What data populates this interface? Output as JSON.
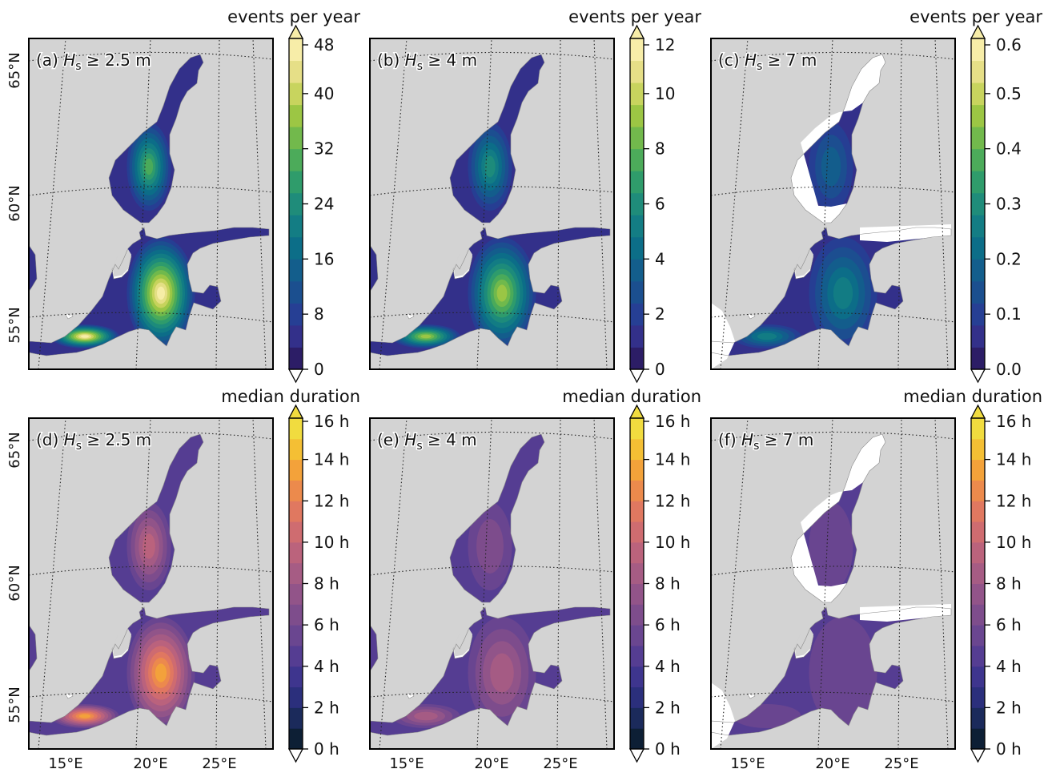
{
  "figure": {
    "lat_labels": [
      "65°N",
      "60°N",
      "55°N"
    ],
    "lon_labels": [
      "15°E",
      "20°E",
      "25°E"
    ],
    "rows": [
      {
        "colorbar_title": "events per year",
        "palette": [
          "#2c1d66",
          "#33308a",
          "#263f94",
          "#1b4f8f",
          "#135e8c",
          "#0c6e88",
          "#137d84",
          "#1f8c7a",
          "#2f9c6b",
          "#4cab5a",
          "#72b94c",
          "#9cc644",
          "#c8d45e",
          "#e6df87",
          "#f7eda8"
        ],
        "panels": [
          {
            "label_prefix": "(a) ",
            "label_sym": "H",
            "label_sub": "s",
            "label_suffix": " ≥ 2.5 m",
            "ticks": [
              "0",
              "8",
              "16",
              "24",
              "32",
              "40",
              "48"
            ],
            "severity": 1.0
          },
          {
            "label_prefix": "(b) ",
            "label_sym": "H",
            "label_sub": "s",
            "label_suffix": " ≥ 4 m",
            "ticks": [
              "0",
              "2",
              "4",
              "6",
              "8",
              "10",
              "12"
            ],
            "severity": 0.75
          },
          {
            "label_prefix": "(c) ",
            "label_sym": "H",
            "label_sub": "s",
            "label_suffix": " ≥ 7 m",
            "ticks": [
              "0.0",
              "0.1",
              "0.2",
              "0.3",
              "0.4",
              "0.5",
              "0.6"
            ],
            "severity": 0.45
          }
        ]
      },
      {
        "colorbar_title": "median duration",
        "palette": [
          "#0d1f35",
          "#1b2a5b",
          "#2b2f7c",
          "#3e358e",
          "#553d92",
          "#6a4690",
          "#7e4d8c",
          "#925489",
          "#a65c84",
          "#bb637c",
          "#cf6c70",
          "#e07860",
          "#ec8a4c",
          "#f3a23a",
          "#f4bf34",
          "#f1dc3f"
        ],
        "panels": [
          {
            "label_prefix": "(d) ",
            "label_sym": "H",
            "label_sub": "s",
            "label_suffix": " ≥ 2.5 m",
            "ticks": [
              "0 h",
              "2 h",
              "4 h",
              "6 h",
              "8 h",
              "10 h",
              "12 h",
              "14 h",
              "16 h"
            ],
            "severity": 0.85
          },
          {
            "label_prefix": "(e) ",
            "label_sym": "H",
            "label_sub": "s",
            "label_suffix": " ≥ 4 m",
            "ticks": [
              "0 h",
              "2 h",
              "4 h",
              "6 h",
              "8 h",
              "10 h",
              "12 h",
              "14 h",
              "16 h"
            ],
            "severity": 0.55
          },
          {
            "label_prefix": "(f) ",
            "label_sym": "H",
            "label_sub": "s",
            "label_suffix": " ≥ 7 m",
            "ticks": [
              "0 h",
              "2 h",
              "4 h",
              "6 h",
              "8 h",
              "10 h",
              "12 h",
              "14 h",
              "16 h"
            ],
            "severity": 0.3
          }
        ]
      }
    ],
    "colors": {
      "land": "#d3d3d3",
      "frame": "#000000",
      "coast": "#8a8a8a",
      "nodata": "#ffffff"
    }
  }
}
